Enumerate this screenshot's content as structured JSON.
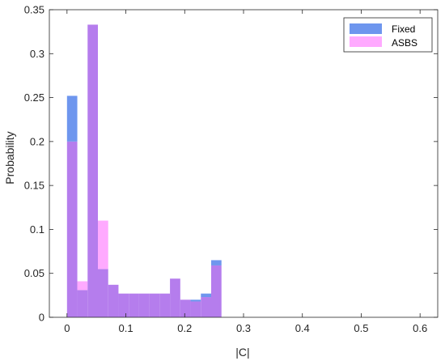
{
  "chart_data": {
    "type": "bar",
    "xlabel": "|C|",
    "ylabel": "Probability",
    "xlim": [
      -0.03,
      0.63
    ],
    "ylim": [
      0,
      0.35
    ],
    "xticks": [
      "0",
      "0.1",
      "0.2",
      "0.3",
      "0.4",
      "0.5",
      "0.6"
    ],
    "yticks": [
      "0",
      "0.05",
      "0.1",
      "0.15",
      "0.2",
      "0.25",
      "0.3",
      "0.35"
    ],
    "bin_edges": [
      0,
      0.0175,
      0.035,
      0.0525,
      0.07,
      0.0875,
      0.105,
      0.1225,
      0.14,
      0.1575,
      0.175,
      0.1925,
      0.21,
      0.2275,
      0.245,
      0.2625,
      0.28
    ],
    "series": [
      {
        "name": "Fixed",
        "color": "#6e96ee",
        "values": [
          0.252,
          0.031,
          0.333,
          0.055,
          0.037,
          0.027,
          0.027,
          0.027,
          0.027,
          0.027,
          0.044,
          0.02,
          0.02,
          0.027,
          0.065,
          0.0
        ]
      },
      {
        "name": "ASBS",
        "color": "#ffaaff",
        "values": [
          0.2,
          0.041,
          0.333,
          0.11,
          0.037,
          0.027,
          0.027,
          0.027,
          0.027,
          0.027,
          0.044,
          0.02,
          0.018,
          0.023,
          0.059,
          0.0
        ]
      }
    ],
    "overlap_color": "#b57ded",
    "legend_position": "top-right",
    "grid": false
  }
}
